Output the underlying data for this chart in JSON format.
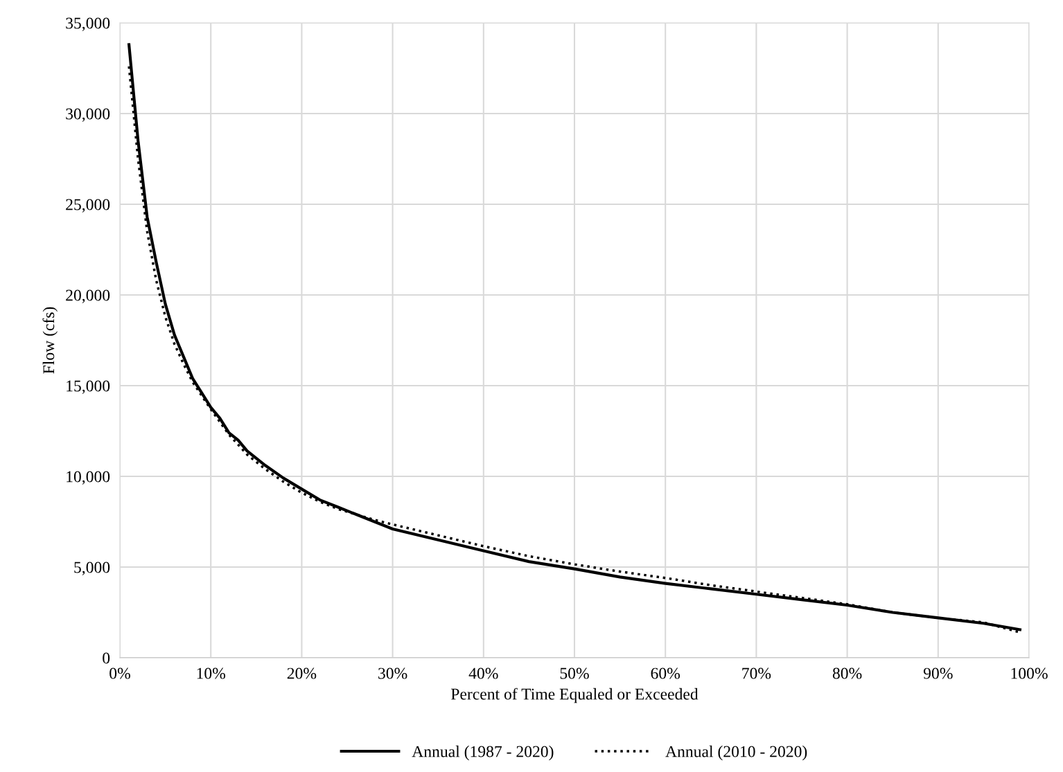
{
  "chart_data": {
    "type": "line",
    "xlabel": "Percent of Time Equaled or Exceeded",
    "ylabel": "Flow (cfs)",
    "xlim": [
      0,
      100
    ],
    "xticks": [
      {
        "value": 0,
        "label": "0%"
      },
      {
        "value": 10,
        "label": "10%"
      },
      {
        "value": 20,
        "label": "20%"
      },
      {
        "value": 30,
        "label": "30%"
      },
      {
        "value": 40,
        "label": "40%"
      },
      {
        "value": 50,
        "label": "50%"
      },
      {
        "value": 60,
        "label": "60%"
      },
      {
        "value": 70,
        "label": "70%"
      },
      {
        "value": 80,
        "label": "80%"
      },
      {
        "value": 90,
        "label": "90%"
      },
      {
        "value": 100,
        "label": "100%"
      }
    ],
    "ylim": [
      0,
      35000
    ],
    "yticks": [
      0,
      {
        "value": 5000,
        "label": "5,000"
      },
      {
        "value": 10000,
        "label": "10,000"
      },
      {
        "value": 15000,
        "label": "15,000"
      },
      {
        "value": 20000,
        "label": "20,000"
      },
      {
        "value": 25000,
        "label": "25,000"
      },
      {
        "value": 30000,
        "label": "30,000"
      },
      {
        "value": 35000,
        "label": "35,000"
      }
    ],
    "grid": true,
    "legend": "bottom",
    "marker": "none",
    "series": [
      {
        "name": "Annual (1987 - 2020)",
        "color": "#000000",
        "line_style": "solid",
        "x": [
          1,
          2,
          3,
          4,
          5,
          6,
          7,
          8,
          9,
          10,
          11,
          12,
          13,
          14,
          16,
          18,
          20,
          22,
          24,
          26,
          28,
          30,
          35,
          40,
          45,
          50,
          55,
          60,
          65,
          70,
          75,
          80,
          85,
          90,
          95,
          99
        ],
        "values": [
          33800,
          28500,
          24300,
          21800,
          19500,
          17800,
          16600,
          15400,
          14600,
          13800,
          13200,
          12400,
          12000,
          11400,
          10600,
          9900,
          9300,
          8700,
          8300,
          7900,
          7500,
          7100,
          6500,
          5900,
          5300,
          4900,
          4450,
          4100,
          3800,
          3500,
          3200,
          2900,
          2500,
          2200,
          1900,
          1550
        ]
      },
      {
        "name": "Annual (2010 - 2020)",
        "color": "#000000",
        "line_style": "dotted",
        "x": [
          1,
          2,
          3,
          4,
          5,
          6,
          7,
          8,
          10,
          12,
          14,
          16,
          18,
          20,
          22,
          24,
          26,
          28,
          30,
          35,
          40,
          45,
          50,
          55,
          60,
          65,
          70,
          75,
          80,
          85,
          90,
          95,
          99
        ],
        "values": [
          32600,
          27500,
          23500,
          20800,
          18800,
          17300,
          16200,
          15200,
          13700,
          12300,
          11200,
          10400,
          9700,
          9100,
          8600,
          8200,
          7900,
          7600,
          7350,
          6750,
          6150,
          5600,
          5150,
          4750,
          4400,
          4000,
          3650,
          3300,
          2950,
          2500,
          2200,
          1950,
          1400
        ]
      }
    ]
  }
}
